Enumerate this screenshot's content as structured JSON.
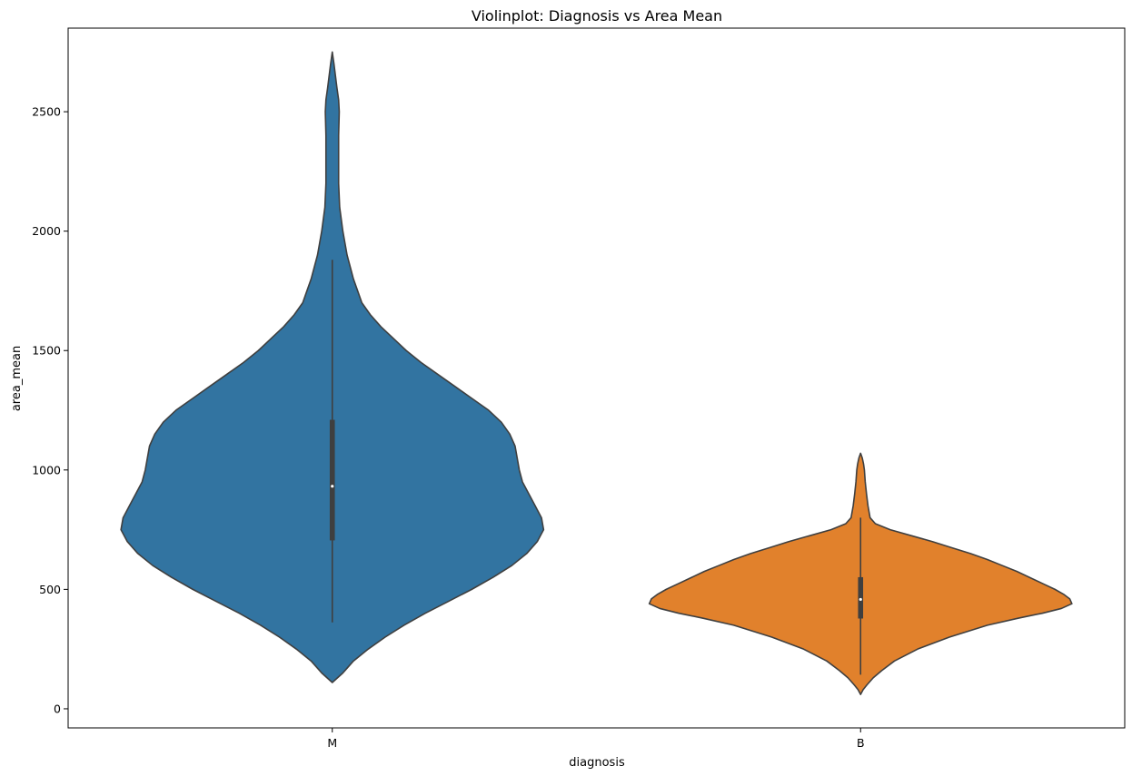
{
  "chart_data": {
    "type": "violin",
    "title": "Violinplot: Diagnosis vs Area Mean",
    "xlabel": "diagnosis",
    "ylabel": "area_mean",
    "categories": [
      "M",
      "B"
    ],
    "ylim": [
      -80,
      2850
    ],
    "yticks": [
      0,
      500,
      1000,
      1500,
      2000,
      2500
    ],
    "grid": false,
    "series": [
      {
        "category": "M",
        "color": "#3274a1",
        "median": 932,
        "q1": 705,
        "q3": 1210,
        "whisker_low": 362,
        "whisker_high": 1880,
        "min": 110,
        "max": 2750,
        "density": [
          [
            110,
            0.0
          ],
          [
            150,
            0.05
          ],
          [
            200,
            0.1
          ],
          [
            250,
            0.17
          ],
          [
            300,
            0.25
          ],
          [
            350,
            0.34
          ],
          [
            400,
            0.44
          ],
          [
            450,
            0.55
          ],
          [
            500,
            0.66
          ],
          [
            550,
            0.76
          ],
          [
            600,
            0.85
          ],
          [
            650,
            0.92
          ],
          [
            700,
            0.97
          ],
          [
            750,
            1.0
          ],
          [
            800,
            0.99
          ],
          [
            850,
            0.96
          ],
          [
            900,
            0.93
          ],
          [
            950,
            0.9
          ],
          [
            1000,
            0.885
          ],
          [
            1050,
            0.875
          ],
          [
            1100,
            0.865
          ],
          [
            1150,
            0.84
          ],
          [
            1200,
            0.8
          ],
          [
            1250,
            0.74
          ],
          [
            1300,
            0.66
          ],
          [
            1350,
            0.58
          ],
          [
            1400,
            0.5
          ],
          [
            1450,
            0.42
          ],
          [
            1500,
            0.35
          ],
          [
            1550,
            0.29
          ],
          [
            1600,
            0.23
          ],
          [
            1650,
            0.18
          ],
          [
            1700,
            0.14
          ],
          [
            1750,
            0.12
          ],
          [
            1800,
            0.1
          ],
          [
            1850,
            0.085
          ],
          [
            1900,
            0.07
          ],
          [
            1950,
            0.06
          ],
          [
            2000,
            0.05
          ],
          [
            2100,
            0.035
          ],
          [
            2200,
            0.03
          ],
          [
            2300,
            0.03
          ],
          [
            2400,
            0.03
          ],
          [
            2500,
            0.033
          ],
          [
            2550,
            0.03
          ],
          [
            2600,
            0.022
          ],
          [
            2650,
            0.015
          ],
          [
            2700,
            0.008
          ],
          [
            2750,
            0.0
          ]
        ]
      },
      {
        "category": "B",
        "color": "#e1812c",
        "median": 458,
        "q1": 378,
        "q3": 551,
        "whisker_low": 143,
        "whisker_high": 800,
        "min": 60,
        "max": 1070,
        "density": [
          [
            60,
            0.0
          ],
          [
            80,
            0.012
          ],
          [
            100,
            0.03
          ],
          [
            130,
            0.06
          ],
          [
            160,
            0.1
          ],
          [
            200,
            0.16
          ],
          [
            250,
            0.27
          ],
          [
            300,
            0.42
          ],
          [
            350,
            0.6
          ],
          [
            380,
            0.75
          ],
          [
            400,
            0.86
          ],
          [
            420,
            0.95
          ],
          [
            440,
            1.0
          ],
          [
            460,
            0.99
          ],
          [
            480,
            0.96
          ],
          [
            500,
            0.92
          ],
          [
            525,
            0.86
          ],
          [
            550,
            0.8
          ],
          [
            575,
            0.74
          ],
          [
            600,
            0.67
          ],
          [
            625,
            0.6
          ],
          [
            650,
            0.52
          ],
          [
            675,
            0.43
          ],
          [
            700,
            0.34
          ],
          [
            725,
            0.24
          ],
          [
            750,
            0.14
          ],
          [
            775,
            0.07
          ],
          [
            800,
            0.045
          ],
          [
            850,
            0.035
          ],
          [
            900,
            0.028
          ],
          [
            950,
            0.022
          ],
          [
            1000,
            0.018
          ],
          [
            1025,
            0.014
          ],
          [
            1050,
            0.008
          ],
          [
            1070,
            0.0
          ]
        ]
      }
    ]
  }
}
